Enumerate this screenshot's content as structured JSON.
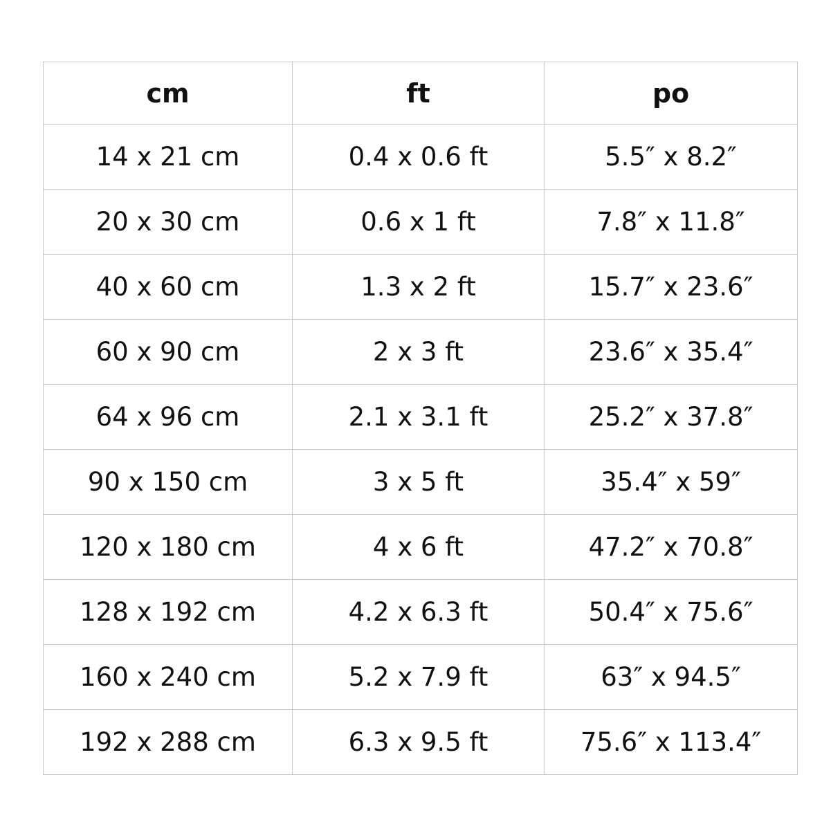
{
  "table": {
    "header": [
      "cm",
      "ft",
      "po"
    ],
    "rows": [
      [
        "14 x 21 cm",
        "0.4 x 0.6 ft",
        "5.5″ x 8.2″"
      ],
      [
        "20 x 30 cm",
        "0.6 x 1 ft",
        "7.8″ x 11.8″"
      ],
      [
        "40 x 60 cm",
        "1.3 x 2 ft",
        "15.7″ x 23.6″"
      ],
      [
        "60 x 90 cm",
        "2 x 3 ft",
        "23.6″ x 35.4″"
      ],
      [
        "64 x 96 cm",
        "2.1 x 3.1 ft",
        "25.2″ x 37.8″"
      ],
      [
        "90 x 150 cm",
        "3 x 5 ft",
        "35.4″ x 59″"
      ],
      [
        "120 x 180 cm",
        "4 x 6 ft",
        "47.2″ x 70.8″"
      ],
      [
        "128 x 192 cm",
        "4.2 x 6.3 ft",
        "50.4″ x 75.6″"
      ],
      [
        "160 x 240 cm",
        "5.2 x 7.9 ft",
        "63″ x 94.5″"
      ],
      [
        "192 x 288 cm",
        "6.3 x 9.5 ft",
        "75.6″ x 113.4″"
      ]
    ]
  }
}
